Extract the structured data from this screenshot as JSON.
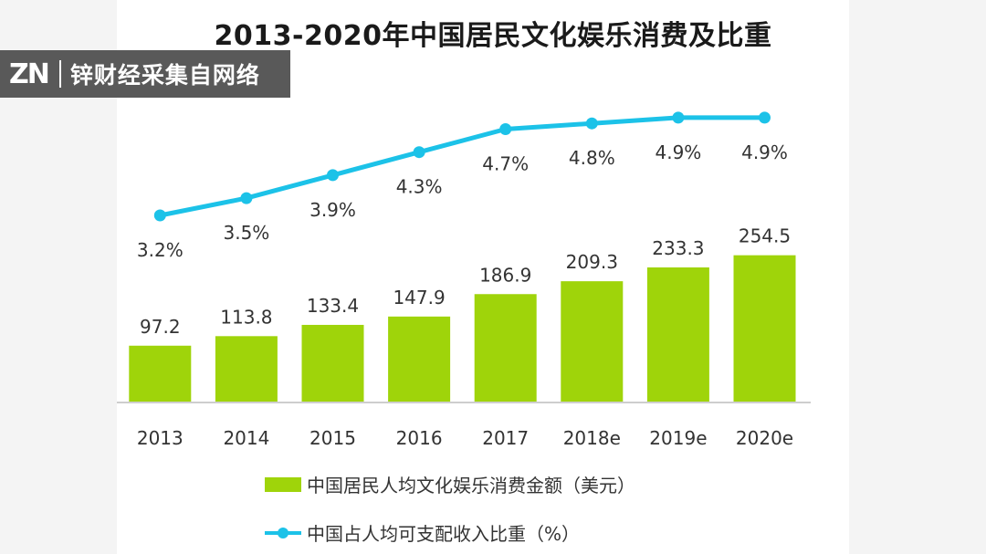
{
  "watermark": {
    "logo": "ZN",
    "text": "锌财经采集自网络"
  },
  "chart_data": {
    "type": "bar",
    "title": "2013-2020年中国居民文化娱乐消费及比重",
    "categories": [
      "2013",
      "2014",
      "2015",
      "2016",
      "2017",
      "2018e",
      "2019e",
      "2020e"
    ],
    "series": [
      {
        "name": "中国居民人均文化娱乐消费金额（美元）",
        "type": "bar",
        "values": [
          97.2,
          113.8,
          133.4,
          147.9,
          186.9,
          209.3,
          233.3,
          254.5
        ],
        "value_labels": [
          "97.2",
          "113.8",
          "133.4",
          "147.9",
          "186.9",
          "209.3",
          "233.3",
          "254.5"
        ],
        "color": "#9fd40a"
      },
      {
        "name": "中国占人均可支配收入比重（%）",
        "type": "line",
        "values": [
          3.2,
          3.5,
          3.9,
          4.3,
          4.7,
          4.8,
          4.9,
          4.9
        ],
        "value_labels": [
          "3.2%",
          "3.5%",
          "3.9%",
          "4.3%",
          "4.7%",
          "4.8%",
          "4.9%",
          "4.9%"
        ],
        "color": "#1cc2e8"
      }
    ],
    "legend_position": "bottom-left",
    "grid": false
  }
}
